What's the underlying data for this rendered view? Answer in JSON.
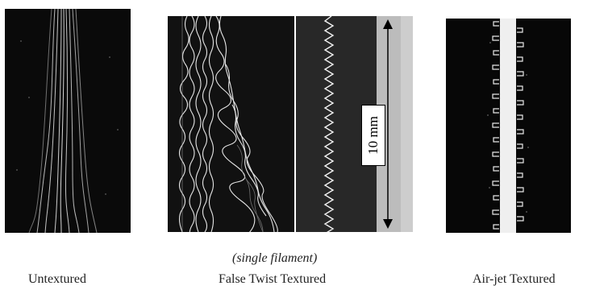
{
  "figure": {
    "panels": [
      {
        "id": "untextured",
        "caption": "Untextured"
      },
      {
        "id": "false_twist",
        "caption": "False Twist Textured",
        "subcaption": "(single filament)"
      },
      {
        "id": "air_jet",
        "caption": "Air-jet Textured"
      }
    ],
    "scale_bar": {
      "label": "10 mm"
    },
    "colors": {
      "background": "#ffffff",
      "image_background": "#0b0b0b",
      "filament": "#f2f2f2",
      "ruler": "#b9b9b9"
    }
  }
}
